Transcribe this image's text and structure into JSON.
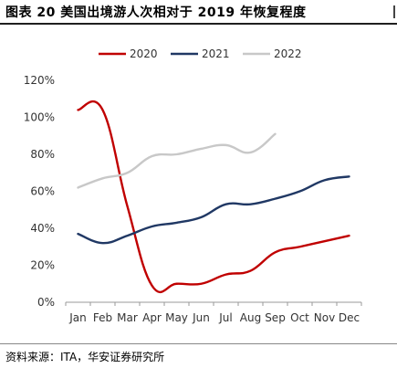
{
  "header": {
    "title": "图表 20  美国出境游人次相对于 2019 年恢复程度"
  },
  "footer": {
    "source": "资料来源：ITA，华安证券研究所"
  },
  "chart_data": {
    "type": "line",
    "title": "",
    "xlabel": "",
    "ylabel": "",
    "categories": [
      "Jan",
      "Feb",
      "Mar",
      "Apr",
      "May",
      "Jun",
      "Jul",
      "Aug",
      "Sep",
      "Oct",
      "Nov",
      "Dec"
    ],
    "y_ticks": [
      "0%",
      "20%",
      "40%",
      "60%",
      "80%",
      "100%",
      "120%"
    ],
    "ylim": [
      0,
      120
    ],
    "unit": "%",
    "grid": false,
    "legend_position": "top-center",
    "smooth": true,
    "series": [
      {
        "name": "2020",
        "color": "#c00000",
        "values": [
          104,
          104,
          52,
          9,
          10,
          10,
          15,
          17,
          27,
          30,
          33,
          36
        ]
      },
      {
        "name": "2021",
        "color": "#203864",
        "values": [
          37,
          32,
          36,
          41,
          43,
          46,
          53,
          53,
          56,
          60,
          66,
          68
        ]
      },
      {
        "name": "2022",
        "color": "#c8c8c8",
        "values": [
          62,
          67,
          70,
          79,
          80,
          83,
          85,
          81,
          91,
          null,
          null,
          null
        ]
      }
    ]
  }
}
